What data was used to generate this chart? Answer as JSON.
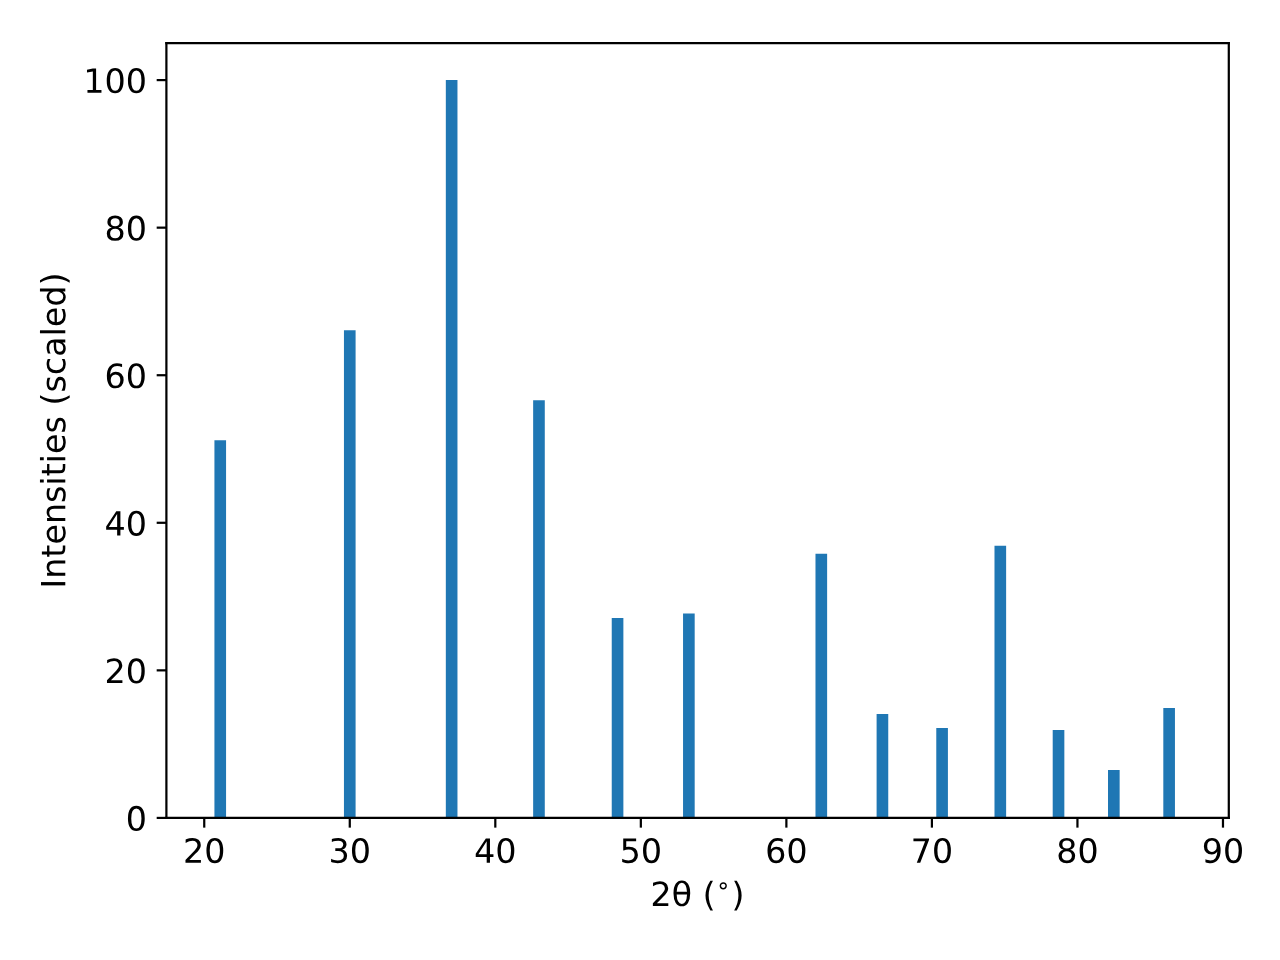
{
  "chart_data": {
    "type": "bar",
    "xlabel": "2θ ($^{∘}$)",
    "ylabel": "Intensities (scaled)",
    "x": [
      21.1,
      30.0,
      37.0,
      43.0,
      48.4,
      53.3,
      62.4,
      66.6,
      70.7,
      74.7,
      78.7,
      82.5,
      86.3
    ],
    "series": [
      {
        "color": "#1f77b4",
        "values": [
          51.2,
          66.1,
          100,
          56.6,
          27.1,
          27.7,
          35.8,
          14.1,
          12.2,
          36.9,
          11.9,
          6.5,
          14.9
        ]
      }
    ],
    "xlim": [
      17.4,
      90.4
    ],
    "xticks": [
      20,
      30,
      40,
      50,
      60,
      70,
      80,
      90
    ],
    "ylim": [
      0,
      105
    ],
    "yticks": [
      0,
      20,
      40,
      60,
      80,
      100
    ],
    "grid": false,
    "legend": false
  }
}
